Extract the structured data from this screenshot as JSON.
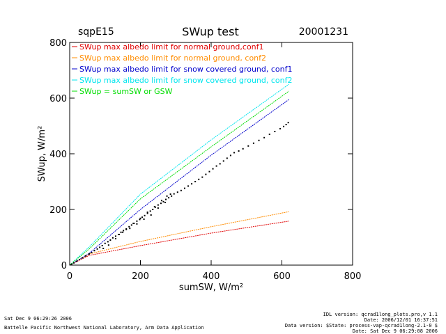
{
  "header": {
    "site": "sqpE15",
    "title": "SWup test",
    "date": "20001231"
  },
  "chart_data": {
    "type": "scatter",
    "xlabel": "sumSW, W/m²",
    "ylabel": "SWup, W/m²",
    "xlim": [
      0,
      800
    ],
    "ylim": [
      0,
      800
    ],
    "xticks": [
      0,
      200,
      400,
      600,
      800
    ],
    "yticks": [
      0,
      200,
      400,
      600,
      800
    ],
    "grid": false,
    "legend_position": "top-left",
    "series": [
      {
        "name": "SWup max albedo limit for normal ground,conf1",
        "color": "#e00000",
        "kind": "line",
        "x": [
          0,
          55,
          200,
          400,
          620
        ],
        "y": [
          0,
          35,
          70,
          115,
          158
        ]
      },
      {
        "name": "SWup max albedo limit for normal ground, conf2",
        "color": "#ff8c00",
        "kind": "line",
        "x": [
          0,
          55,
          200,
          400,
          620
        ],
        "y": [
          0,
          40,
          85,
          138,
          192
        ]
      },
      {
        "name": "SWup max albedo limit for snow covered ground, conf1",
        "color": "#0000cc",
        "kind": "line",
        "x": [
          0,
          55,
          200,
          400,
          620
        ],
        "y": [
          0,
          42,
          200,
          395,
          595
        ]
      },
      {
        "name": "SWup max albedo limit for snow covered ground, conf2",
        "color": "#00e5ee",
        "kind": "line",
        "x": [
          0,
          55,
          200,
          400,
          620
        ],
        "y": [
          0,
          65,
          255,
          450,
          650
        ]
      },
      {
        "name": "SWup = sumSW or GSW",
        "color": "#00dd00",
        "kind": "line",
        "x": [
          0,
          55,
          200,
          400,
          620
        ],
        "y": [
          0,
          58,
          238,
          425,
          625
        ]
      },
      {
        "name": "",
        "color": "#000000",
        "kind": "scatter",
        "x": [
          5,
          12,
          20,
          28,
          36,
          45,
          55,
          62,
          70,
          78,
          85,
          92,
          100,
          108,
          115,
          122,
          130,
          138,
          145,
          152,
          160,
          168,
          175,
          182,
          190,
          198,
          205,
          212,
          220,
          228,
          235,
          242,
          250,
          258,
          265,
          272,
          280,
          288,
          295,
          305,
          315,
          325,
          335,
          345,
          355,
          365,
          375,
          385,
          395,
          405,
          415,
          425,
          435,
          445,
          455,
          465,
          478,
          490,
          505,
          520,
          535,
          550,
          565,
          580,
          595,
          605,
          612,
          618,
          130,
          150,
          170,
          190,
          210,
          230,
          250,
          270,
          110,
          95,
          140,
          160,
          180,
          200,
          220,
          240,
          260,
          275,
          285
        ],
        "y": [
          3,
          8,
          14,
          20,
          26,
          33,
          40,
          45,
          52,
          58,
          64,
          70,
          78,
          84,
          90,
          98,
          104,
          110,
          118,
          124,
          130,
          138,
          144,
          150,
          158,
          164,
          172,
          178,
          186,
          194,
          200,
          208,
          216,
          222,
          228,
          236,
          242,
          248,
          256,
          262,
          268,
          276,
          284,
          292,
          300,
          308,
          316,
          326,
          336,
          346,
          356,
          364,
          374,
          384,
          394,
          404,
          410,
          418,
          428,
          438,
          448,
          458,
          470,
          480,
          490,
          498,
          505,
          512,
          95,
          118,
          132,
          148,
          165,
          180,
          205,
          225,
          72,
          60,
          110,
          128,
          150,
          168,
          190,
          210,
          232,
          248,
          255
        ]
      }
    ]
  },
  "footer": {
    "left1": "Sat Dec  9 06:29:26 2006",
    "left2": "Battelle Pacific Northwest National Laboratory, Arm Data Application",
    "right1": "IDL version: qcrad1long_plots.pro,v 1.1",
    "right2": "Date: 2006/12/01 16:37:51",
    "right3": "Data version: $State: process-vap-qcrad1long-2.1-0 $",
    "right4": "Date: Sat Dec  9 06:29:08 2006"
  }
}
